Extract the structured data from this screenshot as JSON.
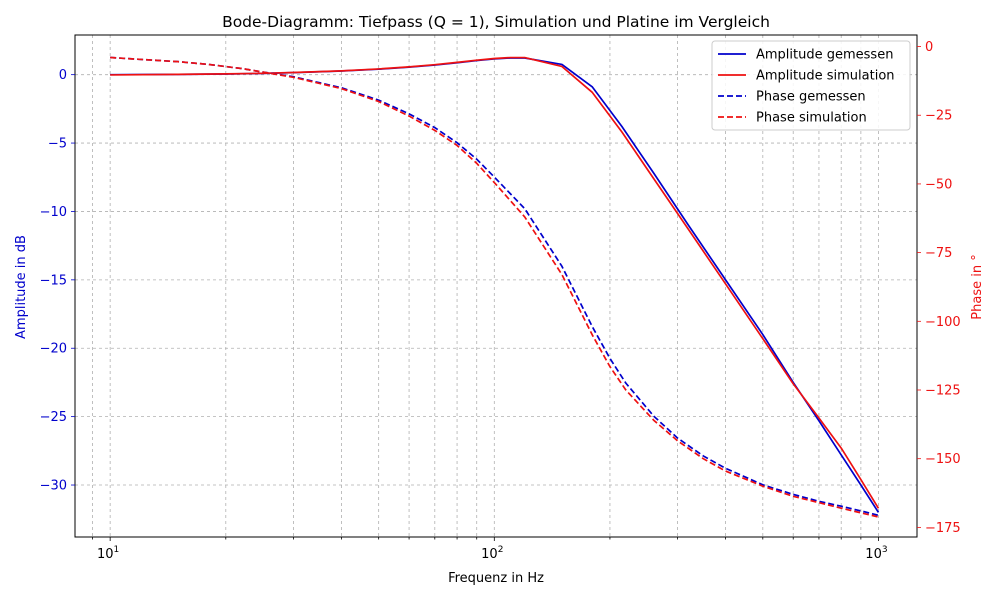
{
  "chart_data": {
    "type": "line",
    "title": "Bode-Diagramm: Tiefpass (Q = 1), Simulation und Platine im Vergleich",
    "xlabel": "Frequenz in Hz",
    "ylabel_left": "Amplitude in dB",
    "ylabel_right": "Phase in °",
    "x_scale": "log",
    "xlim": [
      8.1,
      1260
    ],
    "ylim_left": [
      -33.8,
      2.9
    ],
    "ylim_right": [
      -178.5,
      4.2
    ],
    "x_ticks": [
      {
        "value": 10,
        "base": "10",
        "exp": "1"
      },
      {
        "value": 100,
        "base": "10",
        "exp": "2"
      },
      {
        "value": 1000,
        "base": "10",
        "exp": "3"
      }
    ],
    "y_ticks_left": [
      {
        "value": 0,
        "label": "0"
      },
      {
        "value": -5,
        "label": "−5"
      },
      {
        "value": -10,
        "label": "−10"
      },
      {
        "value": -15,
        "label": "−15"
      },
      {
        "value": -20,
        "label": "−20"
      },
      {
        "value": -25,
        "label": "−25"
      },
      {
        "value": -30,
        "label": "−30"
      }
    ],
    "y_ticks_right": [
      {
        "value": 0,
        "label": "0"
      },
      {
        "value": -25,
        "label": "−25"
      },
      {
        "value": -50,
        "label": "−50"
      },
      {
        "value": -75,
        "label": "−75"
      },
      {
        "value": -100,
        "label": "−100"
      },
      {
        "value": -125,
        "label": "−125"
      },
      {
        "value": -150,
        "label": "−150"
      },
      {
        "value": -175,
        "label": "−175"
      }
    ],
    "grid": true,
    "legend_position": "top-right",
    "colors": {
      "measured": "#0000cc",
      "simulated": "#ee1111",
      "left_axis": "#0000cc",
      "right_axis": "#ee1111"
    },
    "series": [
      {
        "name": "Amplitude gemessen",
        "axis": "left",
        "style": "solid",
        "color": "#0000cc",
        "x": [
          10,
          15,
          20,
          25,
          30,
          40,
          50,
          60,
          70,
          80,
          90,
          100,
          110,
          120,
          150,
          180,
          215,
          260,
          320,
          400,
          500,
          600,
          700,
          800,
          900,
          1000
        ],
        "y": [
          0,
          0.02,
          0.05,
          0.09,
          0.15,
          0.27,
          0.4,
          0.55,
          0.7,
          0.87,
          1.03,
          1.15,
          1.22,
          1.22,
          0.75,
          -0.9,
          -3.8,
          -7.2,
          -11.0,
          -15.0,
          -19.0,
          -22.5,
          -25.3,
          -27.8,
          -30.0,
          -32.0
        ]
      },
      {
        "name": "Amplitude simulation",
        "axis": "left",
        "style": "solid",
        "color": "#ee1111",
        "x": [
          10,
          15,
          20,
          25,
          30,
          40,
          50,
          60,
          70,
          80,
          90,
          100,
          110,
          120,
          150,
          180,
          215,
          260,
          320,
          400,
          500,
          600,
          700,
          800,
          900,
          1000
        ],
        "y": [
          -0.02,
          0.02,
          0.06,
          0.1,
          0.16,
          0.28,
          0.42,
          0.57,
          0.73,
          0.9,
          1.06,
          1.18,
          1.25,
          1.25,
          0.6,
          -1.3,
          -4.2,
          -7.6,
          -11.3,
          -15.3,
          -19.3,
          -22.6,
          -25.1,
          -27.3,
          -29.6,
          -31.7
        ]
      },
      {
        "name": "Phase gemessen",
        "axis": "right",
        "style": "dashed",
        "color": "#0000cc",
        "x": [
          10,
          15,
          18,
          22,
          25,
          30,
          40,
          50,
          60,
          70,
          80,
          90,
          100,
          120,
          150,
          180,
          200,
          220,
          260,
          300,
          350,
          400,
          500,
          600,
          700,
          800,
          900,
          1000
        ],
        "y": [
          -4.0,
          -5.5,
          -6.5,
          -8.0,
          -9.3,
          -11.0,
          -15.0,
          -19.5,
          -24.5,
          -29.5,
          -35.0,
          -41.0,
          -47.5,
          -59.0,
          -80.0,
          -102.0,
          -113.5,
          -122.5,
          -134.5,
          -142.5,
          -149.0,
          -153.5,
          -159.5,
          -163.0,
          -165.5,
          -167.3,
          -169.0,
          -170.6
        ]
      },
      {
        "name": "Phase simulation",
        "axis": "right",
        "style": "dashed",
        "color": "#ee1111",
        "x": [
          10,
          15,
          18,
          22,
          25,
          30,
          40,
          50,
          60,
          70,
          80,
          90,
          100,
          120,
          150,
          180,
          200,
          220,
          260,
          300,
          350,
          400,
          500,
          600,
          700,
          800,
          900,
          1000
        ],
        "y": [
          -4.0,
          -5.5,
          -6.5,
          -8.0,
          -9.3,
          -11.2,
          -15.3,
          -20.0,
          -25.3,
          -30.5,
          -36.0,
          -42.5,
          -49.5,
          -62.0,
          -83.0,
          -105.0,
          -116.5,
          -125.0,
          -136.0,
          -143.5,
          -150.0,
          -154.5,
          -160.0,
          -163.7,
          -166.0,
          -168.0,
          -169.7,
          -171.2
        ]
      }
    ]
  }
}
